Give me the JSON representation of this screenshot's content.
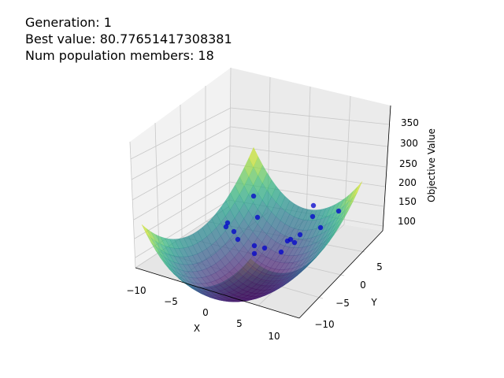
{
  "info": {
    "generation": "Generation: 1",
    "best_value": "Best value: 80.77651417308381",
    "population": "Num population members: 18"
  },
  "chart_data": {
    "type": "surface3d",
    "title": "",
    "xlabel": "X",
    "ylabel": "Y",
    "zlabel": "Objective Value",
    "xlim": [
      -10,
      10
    ],
    "ylim": [
      -10,
      10
    ],
    "zlim": [
      80,
      360
    ],
    "x_ticks": [
      "−10",
      "−5",
      "0",
      "5",
      "10"
    ],
    "y_ticks": [
      "−10",
      "−5",
      "0",
      "5"
    ],
    "z_ticks": [
      "100",
      "150",
      "200",
      "250",
      "300",
      "350"
    ],
    "colormap": "viridis",
    "grid": true,
    "population_color": "#0000cc"
  }
}
